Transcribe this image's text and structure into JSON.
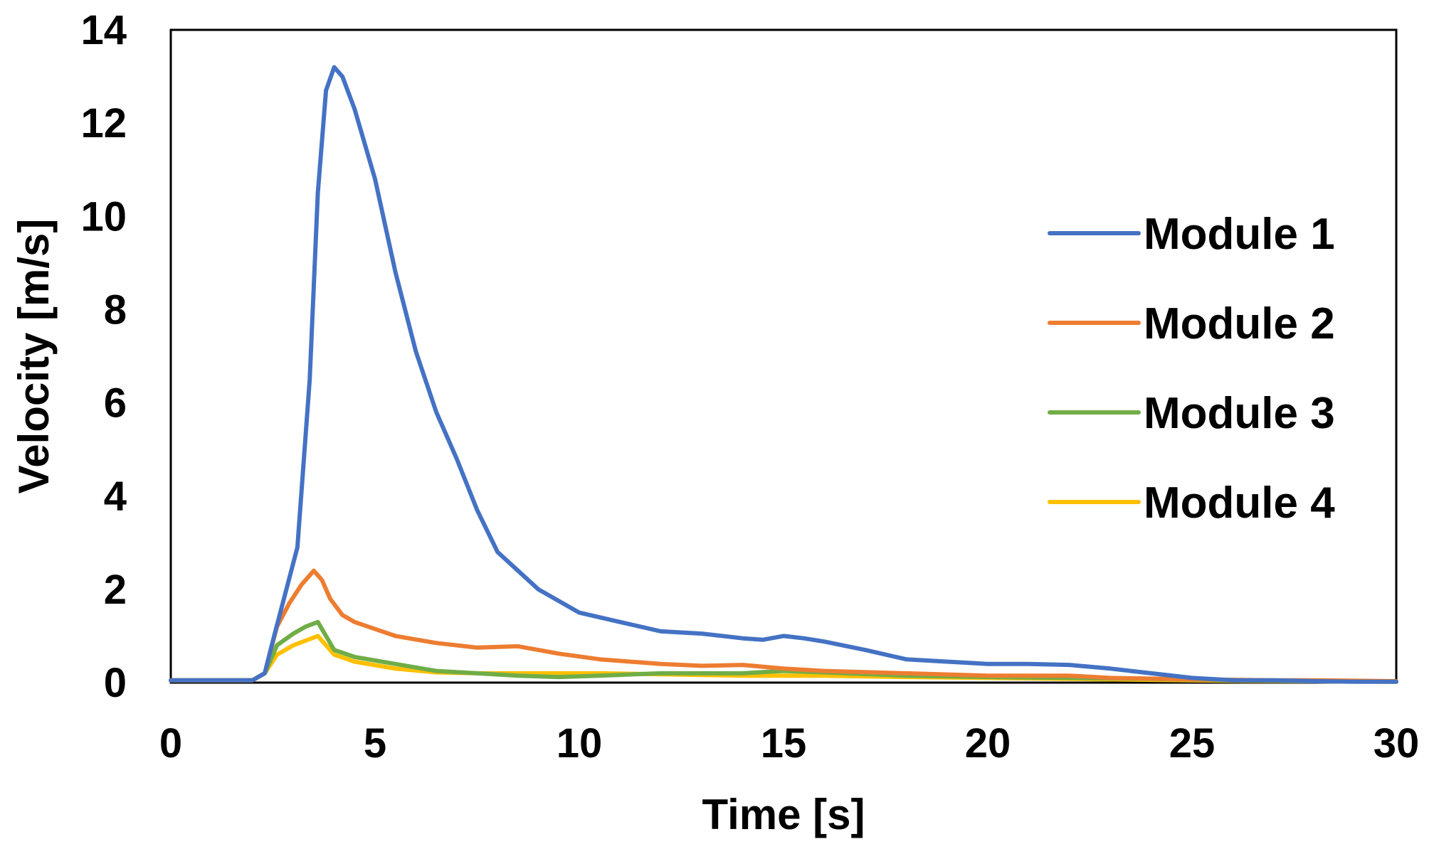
{
  "chart_data": {
    "type": "line",
    "title": "",
    "xlabel": "Time [s]",
    "ylabel": "Velocity [m/s]",
    "xlim": [
      0,
      30
    ],
    "ylim": [
      0,
      14
    ],
    "xticks": [
      0,
      5,
      10,
      15,
      20,
      25,
      30
    ],
    "yticks": [
      0,
      2,
      4,
      6,
      8,
      10,
      12,
      14
    ],
    "grid": false,
    "legend_position": "right",
    "series": [
      {
        "name": "Module 1",
        "color": "#4472C4",
        "x": [
          0,
          1,
          2,
          2.3,
          2.5,
          2.8,
          3.1,
          3.4,
          3.6,
          3.8,
          4.0,
          4.2,
          4.5,
          5.0,
          5.5,
          6.0,
          6.5,
          7.0,
          7.5,
          8.0,
          9.0,
          10.0,
          11.0,
          12.0,
          13.0,
          14.0,
          14.5,
          15.0,
          15.5,
          16.0,
          17.0,
          18.0,
          19.0,
          20.0,
          21.0,
          22.0,
          23.0,
          24.0,
          25.0,
          26.0,
          27.0,
          28.0,
          29.0,
          30.0
        ],
        "y": [
          0.05,
          0.05,
          0.05,
          0.2,
          0.9,
          1.9,
          2.9,
          6.5,
          10.5,
          12.7,
          13.2,
          13.0,
          12.3,
          10.8,
          8.8,
          7.1,
          5.8,
          4.8,
          3.7,
          2.8,
          2.0,
          1.5,
          1.3,
          1.1,
          1.05,
          0.95,
          0.92,
          1.0,
          0.95,
          0.88,
          0.7,
          0.5,
          0.45,
          0.4,
          0.4,
          0.38,
          0.3,
          0.2,
          0.1,
          0.05,
          0.05,
          0.03,
          0.02,
          0.02
        ]
      },
      {
        "name": "Module 2",
        "color": "#ED7D31",
        "x": [
          0,
          1,
          2,
          2.3,
          2.6,
          2.9,
          3.2,
          3.5,
          3.7,
          3.9,
          4.2,
          4.5,
          5.5,
          6.5,
          7.5,
          8.5,
          9.5,
          10.5,
          12.0,
          13.0,
          14.0,
          15.0,
          16.0,
          18.0,
          20.0,
          21.0,
          22.0,
          23.0,
          25.0,
          27.0,
          28.0,
          30.0
        ],
        "y": [
          0.05,
          0.05,
          0.05,
          0.2,
          1.2,
          1.7,
          2.1,
          2.4,
          2.2,
          1.8,
          1.45,
          1.3,
          1.0,
          0.85,
          0.75,
          0.78,
          0.62,
          0.5,
          0.4,
          0.36,
          0.38,
          0.3,
          0.25,
          0.2,
          0.15,
          0.15,
          0.15,
          0.1,
          0.07,
          0.05,
          0.05,
          0.03
        ]
      },
      {
        "name": "Module 3",
        "color": "#70AD47",
        "x": [
          0,
          1,
          2,
          2.3,
          2.6,
          3.0,
          3.3,
          3.6,
          3.8,
          4.0,
          4.5,
          5.5,
          6.5,
          7.5,
          8.5,
          9.5,
          10.5,
          12.0,
          14.0,
          15.0,
          16.0,
          18.0,
          20.0,
          22.0,
          24.0,
          26.0,
          28.0,
          30.0
        ],
        "y": [
          0.05,
          0.05,
          0.05,
          0.2,
          0.8,
          1.05,
          1.2,
          1.3,
          1.0,
          0.7,
          0.55,
          0.4,
          0.25,
          0.2,
          0.15,
          0.12,
          0.15,
          0.2,
          0.2,
          0.25,
          0.22,
          0.15,
          0.12,
          0.1,
          0.08,
          0.05,
          0.03,
          0.02
        ]
      },
      {
        "name": "Module 4",
        "color": "#FFC000",
        "x": [
          0,
          1,
          2,
          2.3,
          2.6,
          3.0,
          3.3,
          3.6,
          3.8,
          4.0,
          4.5,
          5.5,
          6.5,
          7.5,
          8.5,
          9.5,
          10.5,
          12.0,
          14.0,
          16.0,
          18.0,
          20.0,
          22.0,
          24.0,
          26.0,
          28.0,
          30.0
        ],
        "y": [
          0.05,
          0.05,
          0.05,
          0.2,
          0.6,
          0.8,
          0.9,
          1.0,
          0.8,
          0.6,
          0.45,
          0.3,
          0.22,
          0.2,
          0.2,
          0.2,
          0.2,
          0.18,
          0.15,
          0.15,
          0.12,
          0.1,
          0.08,
          0.06,
          0.04,
          0.03,
          0.02
        ]
      }
    ]
  }
}
